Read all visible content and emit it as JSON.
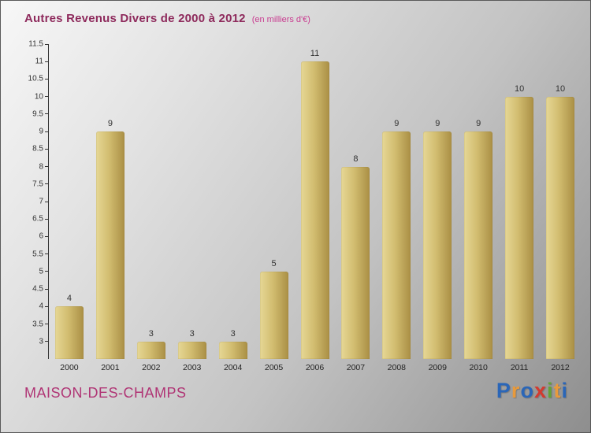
{
  "header": {
    "title": "Autres Revenus Divers de 2000 à 2012",
    "subtitle": "(en milliers d'€)"
  },
  "chart_data": {
    "type": "bar",
    "categories": [
      "2000",
      "2001",
      "2002",
      "2003",
      "2004",
      "2005",
      "2006",
      "2007",
      "2008",
      "2009",
      "2010",
      "2011",
      "2012"
    ],
    "values": [
      4,
      9,
      3,
      3,
      3,
      5,
      11,
      8,
      9,
      9,
      9,
      10,
      10
    ],
    "title": "Autres Revenus Divers de 2000 à 2012",
    "xlabel": "",
    "ylabel": "",
    "ylim": [
      2.5,
      11.5
    ],
    "yticks": [
      3,
      3.5,
      4,
      4.5,
      5,
      5.5,
      6,
      6.5,
      7,
      7.5,
      8,
      8.5,
      9,
      9.5,
      10,
      10.5,
      11,
      11.5
    ],
    "grid": false,
    "legend": "none",
    "bar_gradient": [
      "#e6d795",
      "#d2bd70",
      "#aa8f45"
    ]
  },
  "footer": {
    "company": "MAISON-DES-CHAMPS",
    "logo_letters": [
      {
        "ch": "P",
        "color": "#2a66b8"
      },
      {
        "ch": "r",
        "color": "#e89a3c"
      },
      {
        "ch": "o",
        "color": "#2a66b8"
      },
      {
        "ch": "x",
        "color": "#d43a2f"
      },
      {
        "ch": "i",
        "color": "#63a336"
      },
      {
        "ch": "t",
        "color": "#e89a3c"
      },
      {
        "ch": "i",
        "color": "#2a66b8"
      }
    ]
  },
  "colors": {
    "title": "#8e2a5c",
    "subtitle": "#c93c90",
    "company": "#b03575",
    "axis_text": "#333333"
  }
}
